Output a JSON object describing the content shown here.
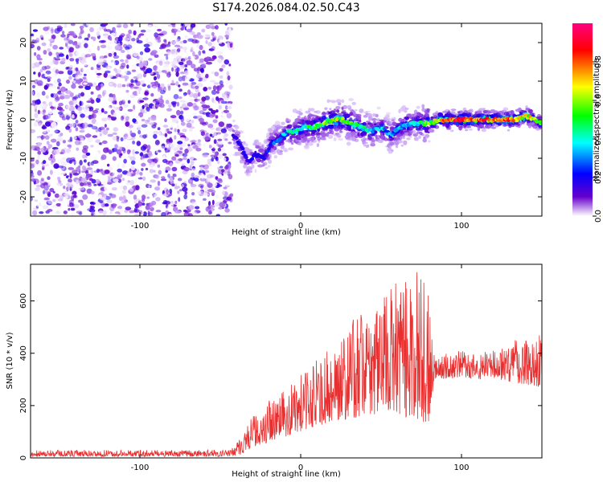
{
  "title": "S174.2026.084.02.50.C43",
  "chart_data": [
    {
      "type": "heatmap",
      "xlabel": "Height of straight line (km)",
      "ylabel": "Frequency (Hz)",
      "xlim": [
        -168,
        150
      ],
      "ylim": [
        -25,
        25
      ],
      "xticks": [
        -100,
        0,
        100
      ],
      "yticks": [
        -20,
        -10,
        0,
        10,
        20
      ],
      "colorbar": {
        "label": "Normalized spectral amplitude",
        "range": [
          0,
          1
        ],
        "ticks": [
          0.0,
          0.2,
          0.4,
          0.6,
          0.8
        ],
        "colormap": [
          "#ff0080",
          "#ff0000",
          "#ffff00",
          "#00ff00",
          "#00ffff",
          "#0000ff",
          "#6600cc",
          "#ffffff"
        ]
      },
      "noise_region_x": [
        -168,
        -43
      ],
      "ridge": {
        "x": [
          -42,
          -38,
          -33,
          -28,
          -23,
          -18,
          -13,
          -8,
          -3,
          2,
          8,
          14,
          20,
          26,
          32,
          38,
          44,
          50,
          56,
          62,
          68,
          74,
          80,
          86,
          92,
          98,
          104,
          110,
          116,
          122,
          128,
          134,
          140,
          146,
          150
        ],
        "y": [
          -4,
          -6,
          -11,
          -9,
          -10,
          -6,
          -5,
          -3,
          -3,
          -2,
          -2,
          -1,
          0,
          0,
          -1,
          -2,
          -3,
          -2,
          -4,
          -2,
          -1,
          -1,
          -1,
          0,
          0,
          0,
          0,
          0,
          0,
          0,
          0,
          0,
          1,
          0,
          -1
        ],
        "amplitude": [
          0.3,
          0.35,
          0.3,
          0.35,
          0.35,
          0.4,
          0.45,
          0.5,
          0.55,
          0.55,
          0.6,
          0.65,
          0.7,
          0.7,
          0.6,
          0.55,
          0.5,
          0.5,
          0.45,
          0.5,
          0.5,
          0.55,
          0.7,
          0.8,
          0.9,
          0.95,
          0.9,
          0.85,
          0.85,
          0.8,
          0.85,
          0.8,
          0.75,
          0.7,
          0.6
        ]
      }
    },
    {
      "type": "line",
      "xlabel": "Height of straight line (km)",
      "ylabel": "SNR (10 * v/v)",
      "xlim": [
        -168,
        150
      ],
      "ylim": [
        0,
        740
      ],
      "xticks": [
        -100,
        0,
        100
      ],
      "yticks": [
        0,
        200,
        400,
        600
      ],
      "color": "#e83030",
      "envelope": {
        "x": [
          -168,
          -45,
          -38,
          -30,
          -20,
          -10,
          0,
          10,
          20,
          30,
          40,
          50,
          60,
          70,
          75,
          80,
          83,
          85,
          90,
          100,
          110,
          120,
          130,
          140,
          150
        ],
        "low": [
          5,
          5,
          10,
          40,
          60,
          80,
          100,
          120,
          140,
          150,
          160,
          170,
          160,
          150,
          140,
          130,
          300,
          310,
          300,
          310,
          300,
          300,
          290,
          280,
          270
        ],
        "high": [
          30,
          30,
          80,
          160,
          220,
          260,
          320,
          380,
          430,
          520,
          560,
          620,
          680,
          740,
          700,
          620,
          400,
          390,
          400,
          410,
          400,
          420,
          450,
          470,
          480
        ]
      }
    }
  ]
}
